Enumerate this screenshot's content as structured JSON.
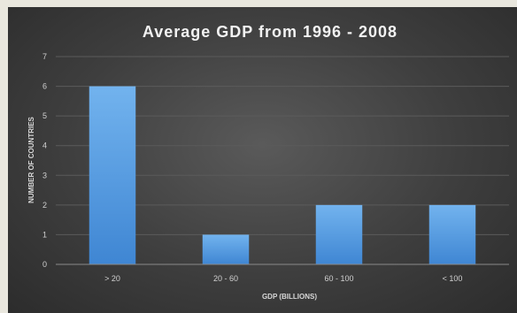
{
  "chart_data": {
    "type": "bar",
    "title": "Average GDP from 1996 - 2008",
    "xlabel": "GDP (BILLIONS)",
    "ylabel": "NUMBER OF COUNTRIES",
    "categories": [
      "> 20",
      "20 - 60",
      "60 - 100",
      "< 100"
    ],
    "values": [
      6,
      1,
      2,
      2
    ],
    "ylim": [
      0,
      7
    ],
    "yticks": [
      "0",
      "1",
      "2",
      "3",
      "4",
      "5",
      "6",
      "7"
    ],
    "grid": true,
    "legend": "none",
    "colors": {
      "bar_top": "#72b3ee",
      "bar_bottom": "#3f86d3",
      "grid": "#5b5b5b"
    }
  }
}
